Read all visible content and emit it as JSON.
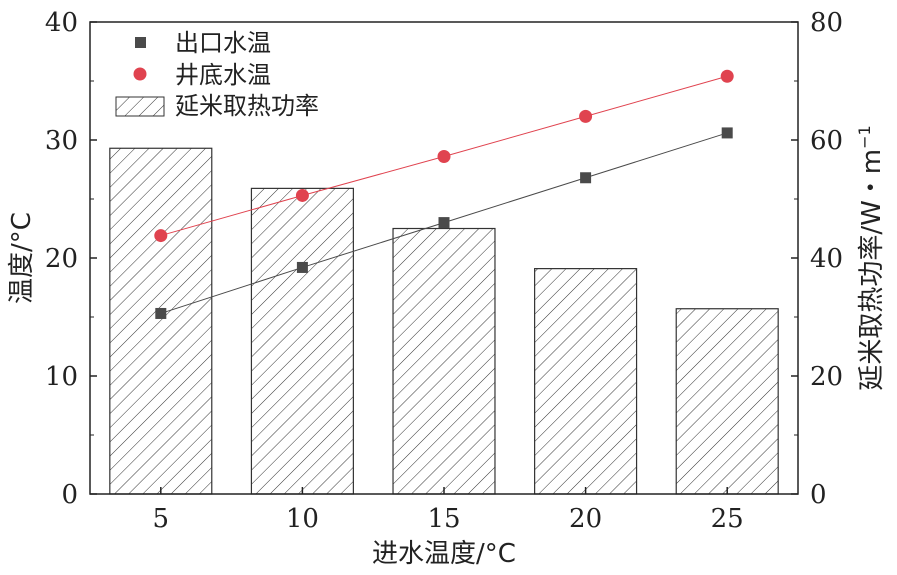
{
  "chart_data": {
    "type": "bar",
    "categories": [
      "5",
      "10",
      "15",
      "20",
      "25"
    ],
    "xlabel": "进水温度/°C",
    "ylabel_left": "温度/°C",
    "ylabel_right": "延米取热功率/W・m",
    "ylabel_right_superscript": "−1",
    "ylim_left": [
      0,
      40
    ],
    "ylim_right": [
      0,
      80
    ],
    "yticks_left": [
      "0",
      "10",
      "20",
      "30",
      "40"
    ],
    "yticks_right": [
      "0",
      "20",
      "40",
      "60",
      "80"
    ],
    "grid": false,
    "legend_placement": "top-left",
    "series": [
      {
        "name": "出口水温",
        "kind": "line",
        "axis": "left",
        "marker": "square",
        "color": "#4a4a4a",
        "values": [
          15.3,
          19.2,
          23.0,
          26.8,
          30.6
        ]
      },
      {
        "name": "井底水温",
        "kind": "line",
        "axis": "left",
        "marker": "circle",
        "color": "#e0434f",
        "values": [
          21.9,
          25.3,
          28.6,
          32.0,
          35.4
        ]
      },
      {
        "name": "延米取热功率",
        "kind": "bar",
        "axis": "right",
        "pattern": "hatch",
        "color": "#333333",
        "values": [
          58.6,
          51.8,
          45.0,
          38.2,
          31.4
        ]
      }
    ]
  }
}
